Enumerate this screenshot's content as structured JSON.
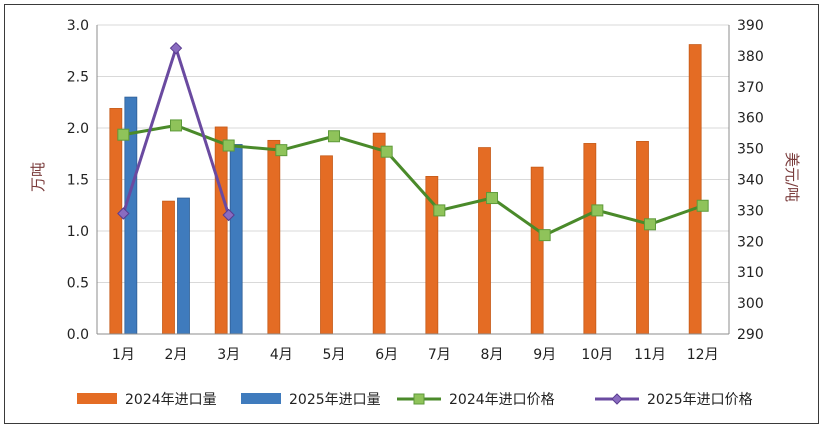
{
  "chart_data": {
    "type": "bar",
    "categories": [
      "1月",
      "2月",
      "3月",
      "4月",
      "5月",
      "6月",
      "7月",
      "8月",
      "9月",
      "10月",
      "11月",
      "12月"
    ],
    "series": [
      {
        "name": "2024年进口量",
        "kind": "bar",
        "axis": "left",
        "color": "#e46c24",
        "values": [
          2.19,
          1.29,
          2.01,
          1.88,
          1.73,
          1.95,
          1.53,
          1.81,
          1.62,
          1.85,
          1.87,
          2.81
        ]
      },
      {
        "name": "2025年进口量",
        "kind": "bar",
        "axis": "left",
        "color": "#3f7bbd",
        "values": [
          2.3,
          1.32,
          1.84,
          null,
          null,
          null,
          null,
          null,
          null,
          null,
          null,
          null
        ]
      },
      {
        "name": "2024年进口价格",
        "kind": "line",
        "axis": "right",
        "color": "#4a8a2a",
        "marker_color": "#8fc35a",
        "values": [
          354.5,
          357.5,
          351,
          349.5,
          354,
          349,
          330,
          334,
          322,
          330,
          325.5,
          331.5
        ]
      },
      {
        "name": "2025年进口价格",
        "kind": "line",
        "axis": "right",
        "color": "#6a4aa0",
        "marker_color": "#8a6cc0",
        "values": [
          329,
          382.5,
          328.5,
          null,
          null,
          null,
          null,
          null,
          null,
          null,
          null,
          null
        ]
      }
    ],
    "ylabel_left": "万吨",
    "ylabel_right": "美元/吨",
    "ylim_left": [
      0,
      3
    ],
    "ylim_right": [
      290,
      390
    ],
    "yticks_left": [
      "0.0",
      "0.5",
      "1.0",
      "1.5",
      "2.0",
      "2.5",
      "3.0"
    ],
    "yticks_right": [
      "290",
      "300",
      "310",
      "320",
      "330",
      "340",
      "350",
      "360",
      "370",
      "380",
      "390"
    ],
    "grid": true,
    "legend_position": "bottom"
  }
}
